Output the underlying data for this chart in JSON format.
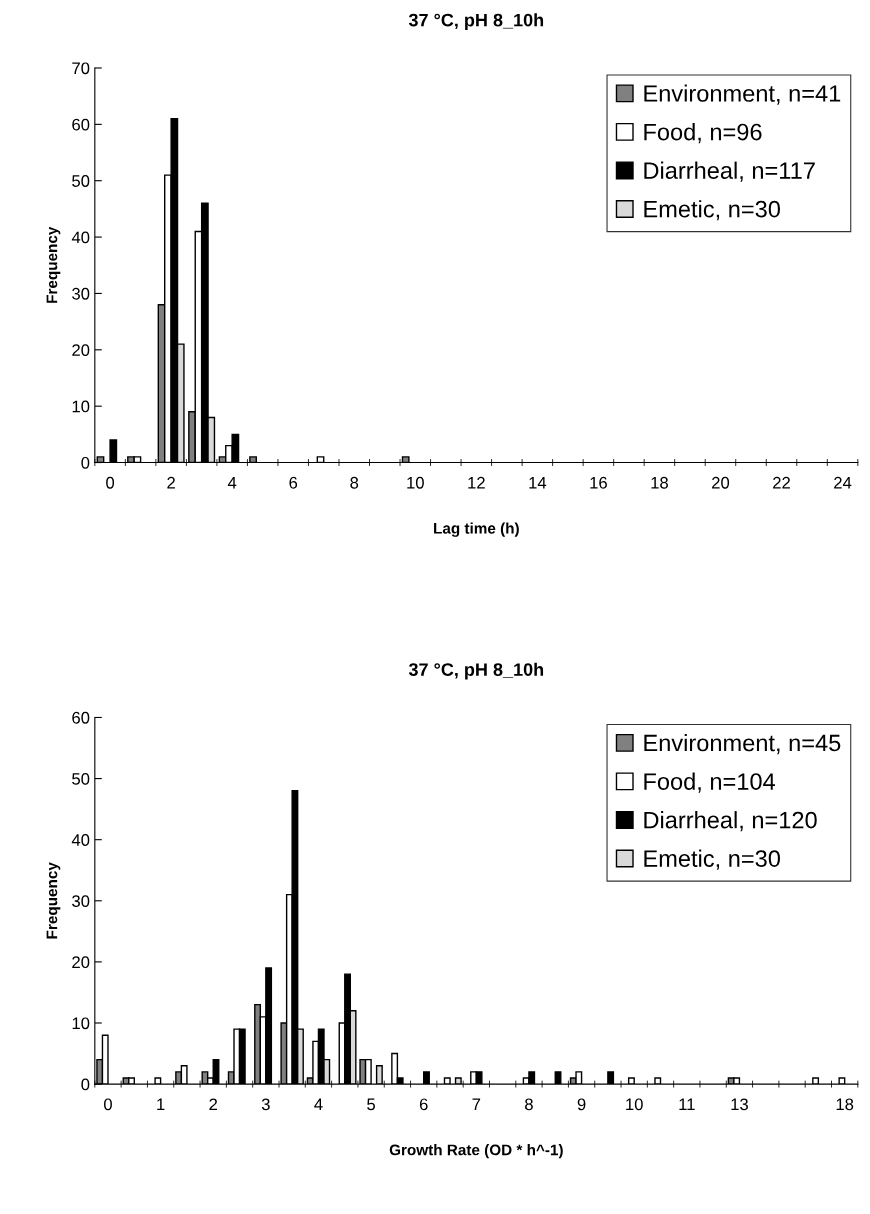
{
  "chart_data": [
    {
      "type": "bar",
      "title": "37 °C, pH 8_10h",
      "xlabel": "Lag time (h)",
      "ylabel": "Frequency",
      "categories": [
        "0",
        null,
        "2",
        null,
        "4",
        null,
        "6",
        null,
        "8",
        null,
        "10",
        null,
        "12",
        null,
        "14",
        null,
        "16",
        null,
        "18",
        null,
        "20",
        null,
        "22",
        null,
        "24"
      ],
      "series": [
        {
          "name": "Environment, n=41",
          "color": "#808080",
          "values": [
            1,
            1,
            28,
            9,
            1,
            1,
            0,
            0,
            0,
            0,
            1,
            0,
            0,
            0,
            0,
            0,
            0,
            0,
            0,
            0,
            0,
            0,
            0,
            0,
            0
          ]
        },
        {
          "name": "Food, n=96",
          "color": "#ffffff",
          "values": [
            0,
            1,
            51,
            41,
            3,
            0,
            0,
            1,
            0,
            0,
            0,
            0,
            0,
            0,
            0,
            0,
            0,
            0,
            0,
            0,
            0,
            0,
            0,
            0,
            0
          ]
        },
        {
          "name": "Diarrheal, n=117",
          "color": "#000000",
          "values": [
            4,
            0,
            61,
            46,
            5,
            0,
            0,
            0,
            0,
            0,
            0,
            0,
            0,
            0,
            0,
            0,
            0,
            0,
            0,
            0,
            0,
            0,
            0,
            0,
            0
          ]
        },
        {
          "name": "Emetic, n=30",
          "color": "#d9d9d9",
          "values": [
            0,
            0,
            21,
            8,
            0,
            0,
            0,
            0,
            0,
            0,
            0,
            0,
            0,
            0,
            0,
            0,
            0,
            0,
            0,
            0,
            0,
            0,
            0,
            0,
            0
          ]
        }
      ],
      "ylim": [
        0,
        70
      ],
      "yticks": [
        0,
        10,
        20,
        30,
        40,
        50,
        60,
        70
      ],
      "grid": false,
      "legend": "top right"
    },
    {
      "type": "bar",
      "title": "37 °C, pH 8_10h",
      "xlabel": "Growth Rate (OD * h^-1)",
      "ylabel": "Frequency",
      "categories": [
        "0",
        null,
        "1",
        null,
        "2",
        null,
        "3",
        null,
        "4",
        null,
        "5",
        null,
        "6",
        null,
        "7",
        null,
        "8",
        null,
        "9",
        null,
        "10",
        null,
        "11",
        null,
        "13",
        null,
        null,
        null,
        "18"
      ],
      "series": [
        {
          "name": "Environment, n=45",
          "color": "#808080",
          "values": [
            4,
            1,
            0,
            2,
            2,
            2,
            13,
            10,
            1,
            0,
            4,
            0,
            0,
            0,
            0,
            0,
            0,
            0,
            1,
            0,
            0,
            0,
            0,
            0,
            1,
            0,
            0,
            0,
            0
          ]
        },
        {
          "name": "Food, n=104",
          "color": "#ffffff",
          "values": [
            8,
            1,
            1,
            3,
            1,
            9,
            11,
            31,
            7,
            10,
            4,
            5,
            0,
            1,
            2,
            0,
            1,
            0,
            2,
            0,
            1,
            1,
            0,
            0,
            1,
            0,
            0,
            1,
            1
          ]
        },
        {
          "name": "Diarrheal, n=120",
          "color": "#000000",
          "values": [
            0,
            0,
            0,
            0,
            4,
            9,
            19,
            48,
            9,
            18,
            0,
            1,
            2,
            0,
            2,
            0,
            2,
            2,
            0,
            2,
            0,
            0,
            0,
            0,
            0,
            0,
            0,
            0,
            0
          ]
        },
        {
          "name": "Emetic, n=30",
          "color": "#d9d9d9",
          "values": [
            0,
            0,
            0,
            0,
            0,
            0,
            0,
            9,
            4,
            12,
            3,
            0,
            0,
            1,
            0,
            0,
            0,
            0,
            0,
            0,
            0,
            0,
            0,
            0,
            0,
            0,
            0,
            0,
            0
          ]
        }
      ],
      "ylim": [
        0,
        60
      ],
      "yticks": [
        0,
        10,
        20,
        30,
        40,
        50,
        60
      ],
      "grid": false,
      "legend": "top right"
    }
  ]
}
